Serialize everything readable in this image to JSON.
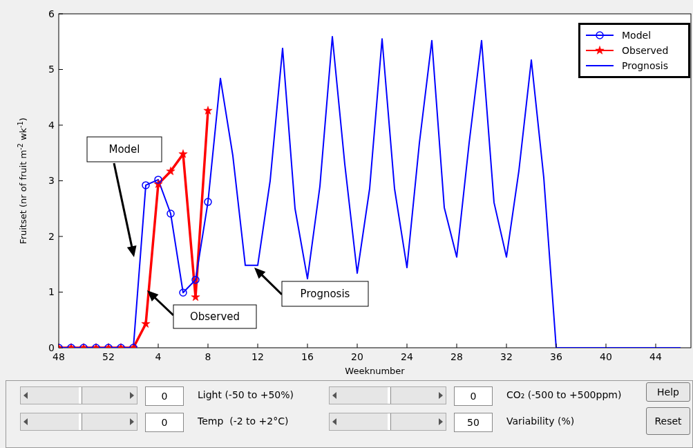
{
  "chart_data": {
    "type": "line",
    "xlabel": "Weeknumber",
    "ylabel": "Fruitset (nr of fruit m$^{-2}$ wk$^{-1}$)",
    "categories": [
      "48",
      null,
      null,
      null,
      "52",
      null,
      null,
      null,
      "4",
      null,
      null,
      null,
      "8",
      null,
      null,
      null,
      "12",
      null,
      null,
      null,
      "16",
      null,
      null,
      null,
      "20",
      null,
      null,
      null,
      "24",
      null,
      null,
      null,
      "28",
      null,
      null,
      null,
      "32",
      null,
      null,
      null,
      "36",
      null,
      null,
      null,
      "40",
      null,
      null,
      null,
      "44",
      null,
      null
    ],
    "ylim": [
      0,
      6
    ],
    "yticks": [
      0,
      1,
      2,
      3,
      4,
      5,
      6
    ],
    "grid": false,
    "legend": "top right",
    "line_style": "solid",
    "series": [
      {
        "name": "Model",
        "color": "#0000ff",
        "marker": "circle",
        "values": [
          0,
          0,
          0,
          0,
          0,
          0,
          0,
          2.92,
          3.02,
          2.41,
          0.99,
          1.22,
          2.62,
          null,
          null,
          null,
          null,
          null,
          null,
          null,
          null,
          null,
          null,
          null,
          null,
          null,
          null,
          null,
          null,
          null,
          null,
          null,
          null,
          null,
          null,
          null,
          null,
          null,
          null,
          null,
          null,
          null,
          null,
          null,
          null,
          null,
          null,
          null,
          null,
          null,
          null
        ]
      },
      {
        "name": "Observed",
        "color": "#ff0000",
        "marker": "star",
        "values": [
          0,
          0,
          0,
          0,
          0,
          0,
          0,
          0.43,
          2.94,
          3.17,
          3.48,
          0.91,
          4.26,
          null,
          null,
          null,
          null,
          null,
          null,
          null,
          null,
          null,
          null,
          null,
          null,
          null,
          null,
          null,
          null,
          null,
          null,
          null,
          null,
          null,
          null,
          null,
          null,
          null,
          null,
          null,
          null,
          null,
          null,
          null,
          null,
          null,
          null,
          null,
          null,
          null,
          null
        ]
      },
      {
        "name": "Prognosis",
        "color": "#0000ff",
        "marker": "none",
        "values": [
          null,
          null,
          null,
          null,
          null,
          null,
          null,
          null,
          null,
          null,
          null,
          null,
          2.62,
          4.84,
          3.45,
          1.48,
          1.48,
          3.0,
          5.38,
          2.5,
          1.24,
          2.9,
          5.59,
          3.3,
          1.34,
          2.86,
          5.55,
          2.86,
          1.44,
          3.68,
          5.52,
          2.52,
          1.63,
          3.68,
          5.52,
          2.61,
          1.63,
          3.18,
          5.17,
          3.06,
          0,
          0,
          0,
          0,
          0,
          0,
          0,
          0,
          0,
          0,
          0
        ]
      }
    ],
    "annotations": [
      "Model",
      "Observed",
      "Prognosis",
      "0",
      "Light (-50 to +50%)",
      "0",
      "CO₂ (-500 to +500ppm)",
      "Help",
      "0",
      "Temp  (-2 to +2°C)",
      "50",
      "Variability (%)",
      "Reset"
    ]
  }
}
